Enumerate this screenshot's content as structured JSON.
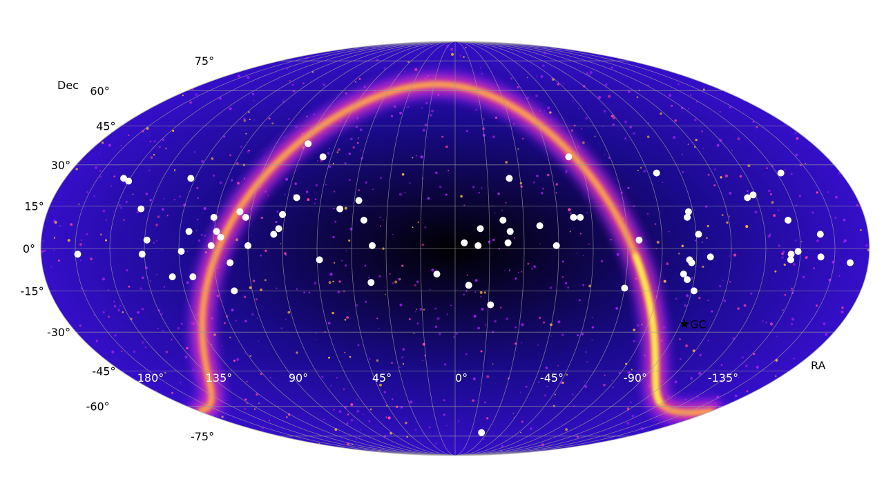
{
  "chart_data": {
    "type": "scatter",
    "projection": "mollweide",
    "title": "",
    "xlabel": "RA",
    "ylabel": "Dec",
    "xlim": [
      180,
      -180
    ],
    "ylim": [
      -90,
      90
    ],
    "grid": true,
    "ra_tick_labels": [
      "180°",
      "135°",
      "90°",
      "45°",
      "0°",
      "-45°",
      "-90°",
      "-135°",
      "180°"
    ],
    "dec_tick_labels": [
      "75°",
      "60°",
      "45°",
      "30°",
      "15°",
      "0°",
      "-15°",
      "-30°",
      "-45°",
      "-60°",
      "-75°"
    ],
    "background": {
      "description_colormap": "magma-like",
      "colors": [
        "#000000",
        "#1a0a8c",
        "#3b10d8",
        "#a020f0",
        "#ff3fa0",
        "#ffb43c",
        "#ffff50"
      ]
    },
    "marker": {
      "label": "GC",
      "symbol": "star",
      "ra": -107,
      "dec": -27
    },
    "points_color": "#ffffff",
    "points": [
      {
        "ra": 164,
        "dec": -2
      },
      {
        "ra": 150,
        "dec": 24
      },
      {
        "ra": 153,
        "dec": 25
      },
      {
        "ra": 139,
        "dec": 14
      },
      {
        "ra": 134,
        "dec": 3
      },
      {
        "ra": 136,
        "dec": -2
      },
      {
        "ra": 122,
        "dec": 25
      },
      {
        "ra": 116,
        "dec": 6
      },
      {
        "ra": 119,
        "dec": -1
      },
      {
        "ra": 124,
        "dec": -10
      },
      {
        "ra": 115,
        "dec": -10
      },
      {
        "ra": 106,
        "dec": 11
      },
      {
        "ra": 104,
        "dec": 6
      },
      {
        "ra": 102,
        "dec": 4
      },
      {
        "ra": 106,
        "dec": 1
      },
      {
        "ra": 98,
        "dec": -5
      },
      {
        "ra": 98,
        "dec": -15
      },
      {
        "ra": 95,
        "dec": 13
      },
      {
        "ra": 92,
        "dec": 11
      },
      {
        "ra": 90,
        "dec": 1
      },
      {
        "ra": 79,
        "dec": 5
      },
      {
        "ra": 77,
        "dec": 7
      },
      {
        "ra": 76,
        "dec": 12
      },
      {
        "ra": 71,
        "dec": 18
      },
      {
        "ra": 59,
        "dec": -4
      },
      {
        "ra": 74,
        "dec": 38
      },
      {
        "ra": 64,
        "dec": 33
      },
      {
        "ra": 51,
        "dec": 14
      },
      {
        "ra": 43,
        "dec": 17
      },
      {
        "ra": 40,
        "dec": 10
      },
      {
        "ra": 36,
        "dec": 1
      },
      {
        "ra": 37,
        "dec": -12
      },
      {
        "ra": 8,
        "dec": -9
      },
      {
        "ra": -4,
        "dec": 2
      },
      {
        "ra": -10,
        "dec": 1
      },
      {
        "ra": -11,
        "dec": 7
      },
      {
        "ra": -6,
        "dec": -13
      },
      {
        "ra": -16,
        "dec": -20
      },
      {
        "ra": -21,
        "dec": 10
      },
      {
        "ra": -23,
        "dec": 2
      },
      {
        "ra": -24,
        "dec": 6
      },
      {
        "ra": -25,
        "dec": 25
      },
      {
        "ra": -37,
        "dec": 8
      },
      {
        "ra": -44,
        "dec": 1
      },
      {
        "ra": -52,
        "dec": 11
      },
      {
        "ra": -55,
        "dec": 11
      },
      {
        "ra": -55,
        "dec": 33
      },
      {
        "ra": -80,
        "dec": 3
      },
      {
        "ra": -75,
        "dec": -14
      },
      {
        "ra": -94,
        "dec": 27
      },
      {
        "ra": -102,
        "dec": 11
      },
      {
        "ra": -103,
        "dec": 13
      },
      {
        "ra": -106,
        "dec": 5
      },
      {
        "ra": -102,
        "dec": -4
      },
      {
        "ra": -103,
        "dec": -5
      },
      {
        "ra": -111,
        "dec": -3
      },
      {
        "ra": -100,
        "dec": -9
      },
      {
        "ra": -102,
        "dec": -11
      },
      {
        "ra": -106,
        "dec": -15
      },
      {
        "ra": -131,
        "dec": 18
      },
      {
        "ra": -134,
        "dec": 19
      },
      {
        "ra": -146,
        "dec": 10
      },
      {
        "ra": -146,
        "dec": -2
      },
      {
        "ra": -146,
        "dec": -4
      },
      {
        "ra": -152,
        "dec": 27
      },
      {
        "ra": -149,
        "dec": -1
      },
      {
        "ra": -159,
        "dec": 5
      },
      {
        "ra": -159,
        "dec": -3
      },
      {
        "ra": -172,
        "dec": -5
      },
      {
        "ra": -25,
        "dec": -73
      }
    ]
  }
}
